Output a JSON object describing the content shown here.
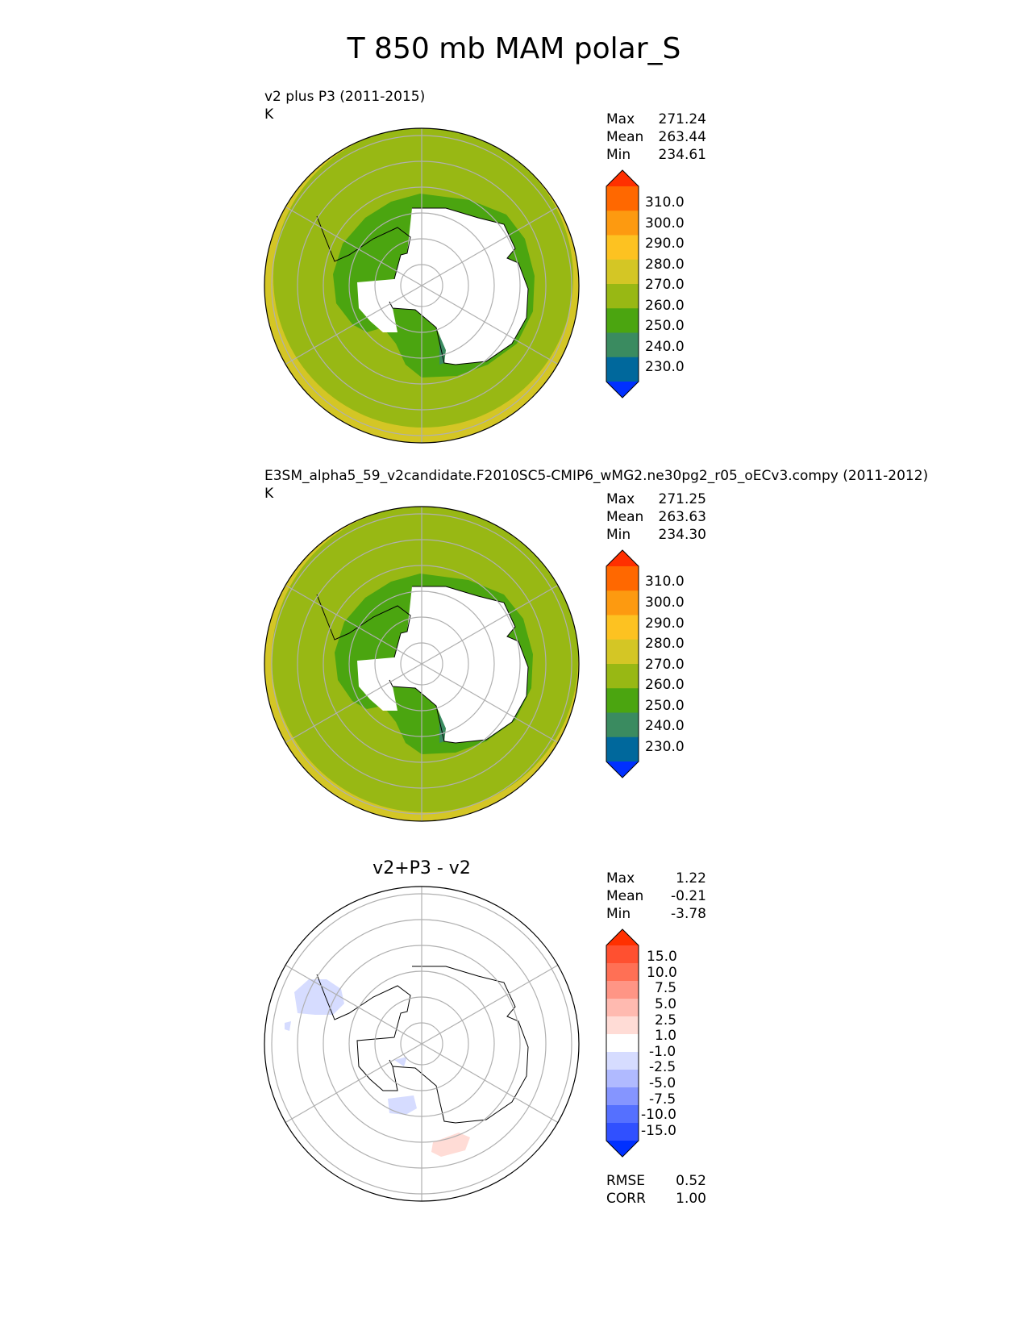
{
  "chart_data": [
    {
      "type": "heatmap",
      "figure_title": "T 850 mb MAM polar_S",
      "title": "v2 plus P3 (2011-2015)",
      "units": "K",
      "projection": "south polar stereographic",
      "stats": [
        {
          "label": "Max",
          "value": "271.24"
        },
        {
          "label": "Mean",
          "value": "263.44"
        },
        {
          "label": "Min",
          "value": "234.61"
        }
      ],
      "colorbar": {
        "ticks": [
          "310.0",
          "300.0",
          "290.0",
          "280.0",
          "270.0",
          "260.0",
          "250.0",
          "240.0",
          "230.0"
        ],
        "colors": [
          "#ff3000",
          "#ff6800",
          "#fd9a10",
          "#fdc221",
          "#d4c625",
          "#98b814",
          "#4ba510",
          "#3a8b60",
          "#00689c",
          "#0030ff"
        ]
      },
      "fields": {
        "ocean": "#98b814",
        "outer_rim": "#d4c625",
        "coastal_ice": "#4ba510",
        "land_mask": "#ffffff"
      }
    },
    {
      "type": "heatmap",
      "title": "E3SM_alpha5_59_v2candidate.F2010SC5-CMIP6_wMG2.ne30pg2_r05_oECv3.compy (2011-2012)",
      "units": "K",
      "projection": "south polar stereographic",
      "stats": [
        {
          "label": "Max",
          "value": "271.25"
        },
        {
          "label": "Mean",
          "value": "263.63"
        },
        {
          "label": "Min",
          "value": "234.30"
        }
      ],
      "colorbar": {
        "ticks": [
          "310.0",
          "300.0",
          "290.0",
          "280.0",
          "270.0",
          "260.0",
          "250.0",
          "240.0",
          "230.0"
        ],
        "colors": [
          "#ff3000",
          "#ff6800",
          "#fd9a10",
          "#fdc221",
          "#d4c625",
          "#98b814",
          "#4ba510",
          "#3a8b60",
          "#00689c",
          "#0030ff"
        ]
      },
      "fields": {
        "ocean": "#98b814",
        "outer_rim": "#d4c625",
        "coastal_ice": "#4ba510",
        "land_mask": "#ffffff"
      }
    },
    {
      "type": "heatmap",
      "title": "v2+P3 - v2",
      "projection": "south polar stereographic",
      "stats": [
        {
          "label": "Max",
          "value": "1.22"
        },
        {
          "label": "Mean",
          "value": "-0.21"
        },
        {
          "label": "Min",
          "value": "-3.78"
        }
      ],
      "colorbar": {
        "ticks": [
          "15.0",
          "10.0",
          "7.5",
          "5.0",
          "2.5",
          "1.0",
          "-1.0",
          "-2.5",
          "-5.0",
          "-7.5",
          "-10.0",
          "-15.0"
        ],
        "colors": [
          "#ff3000",
          "#ff5030",
          "#ff7055",
          "#ff9585",
          "#ffbab0",
          "#ffdcd6",
          "#ffffff",
          "#d6dcff",
          "#b0baff",
          "#8595ff",
          "#5570ff",
          "#3050ff",
          "#0030ff"
        ]
      },
      "metrics": [
        {
          "label": "RMSE",
          "value": "0.52"
        },
        {
          "label": "CORR",
          "value": "1.00"
        }
      ],
      "fields": {
        "ocean": "#ffffff",
        "weak_cooling": "#d6dcff",
        "weak_warming": "#ffdcd6"
      }
    }
  ]
}
